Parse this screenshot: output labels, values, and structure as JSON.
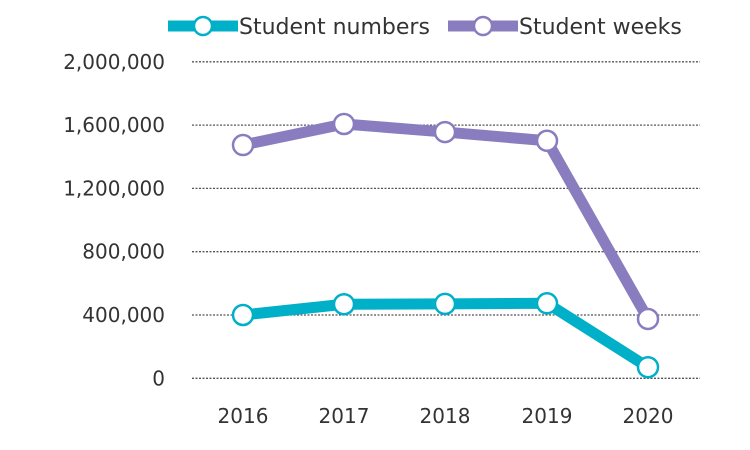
{
  "chart_data": {
    "type": "line",
    "title": "",
    "xlabel": "",
    "ylabel": "",
    "categories": [
      "2016",
      "2017",
      "2018",
      "2019",
      "2020"
    ],
    "ylim": [
      0,
      2000000
    ],
    "yticks": [
      0,
      400000,
      800000,
      1200000,
      1600000,
      2000000
    ],
    "ytick_labels": [
      "0",
      "400,000",
      "800,000",
      "1,200,000",
      "1,600,000",
      "2,000,000"
    ],
    "grid": true,
    "legend_position": "top",
    "series": [
      {
        "name": "Student numbers",
        "color": "#00b0c8",
        "values": [
          400000,
          468000,
          470000,
          474000,
          70000
        ]
      },
      {
        "name": "Student weeks",
        "color": "#8a7dbf",
        "values": [
          1474000,
          1607000,
          1556000,
          1501000,
          375000
        ]
      }
    ]
  }
}
